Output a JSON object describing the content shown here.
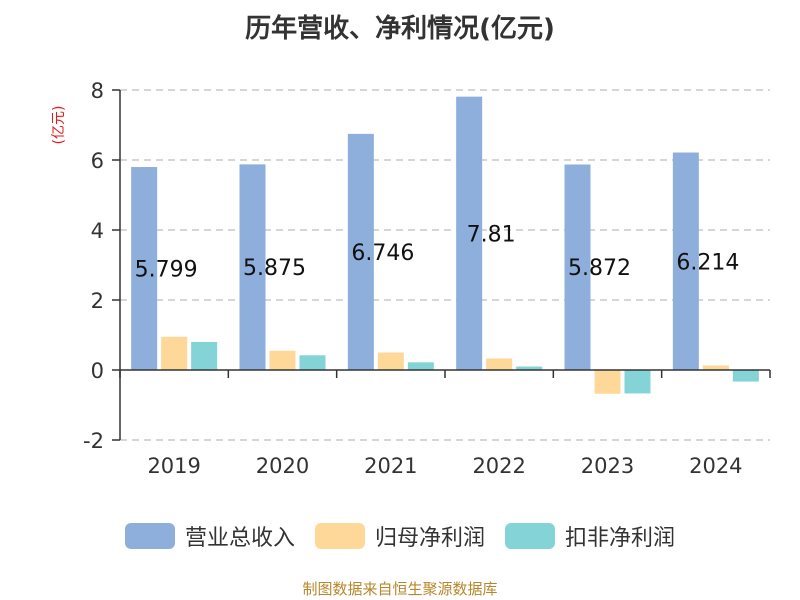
{
  "title": "历年营收、净利情况(亿元)",
  "unit_label": "(亿元)",
  "source": "制图数据来自恒生聚源数据库",
  "colors": {
    "revenue": "#8eaedb",
    "parent_net_profit": "#fdd899",
    "deducted_net_profit": "#84d3d6",
    "grid": "#c8c8c8",
    "axis": "#333333",
    "unit_label": "#e31a1c",
    "source": "#b8862b"
  },
  "chart_data": {
    "type": "bar",
    "categories": [
      "2019",
      "2020",
      "2021",
      "2022",
      "2023",
      "2024"
    ],
    "series": [
      {
        "name": "营业总收入",
        "values": [
          5.799,
          5.875,
          6.746,
          7.81,
          5.872,
          6.214
        ]
      },
      {
        "name": "归母净利润",
        "values": [
          0.95,
          0.55,
          0.5,
          0.33,
          -0.68,
          0.13
        ]
      },
      {
        "name": "扣非净利润",
        "values": [
          0.8,
          0.42,
          0.22,
          0.1,
          -0.67,
          -0.33
        ]
      }
    ],
    "data_labels": [
      "5.799",
      "5.875",
      "6.746",
      "7.81",
      "5.872",
      "6.214"
    ],
    "ylim": [
      -2,
      8
    ],
    "yticks": [
      "-2",
      "0",
      "2",
      "4",
      "6",
      "8"
    ],
    "grid": true,
    "legend_position": "bottom"
  }
}
